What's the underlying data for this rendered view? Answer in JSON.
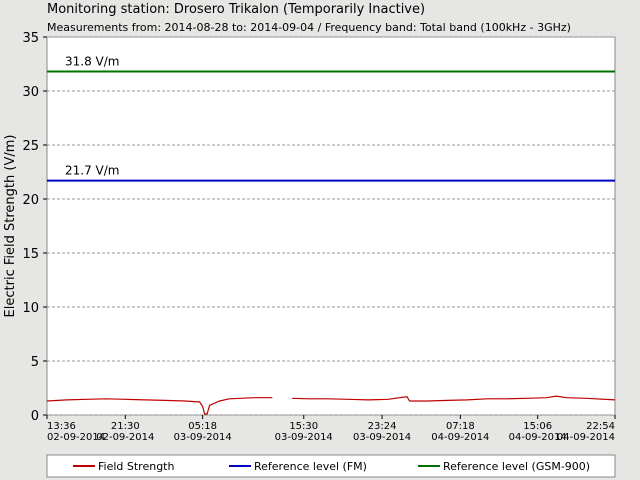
{
  "chart_data": {
    "type": "line",
    "title": "Monitoring station: Drosero Trikalon (Temporarily Inactive)",
    "subtitle": "Measurements from: 2014-08-28 to: 2014-09-04 / Frequency band: Total band (100kHz - 3GHz)",
    "y_label": "Electric Field Strength (V/m)",
    "ylim": [
      0,
      35
    ],
    "yticks": [
      0,
      5,
      10,
      15,
      20,
      25,
      30,
      35
    ],
    "grid": true,
    "xlim": [
      "2014-09-02 13:36",
      "2014-09-04 22:54"
    ],
    "xticks": [
      {
        "value": "2014-09-02 13:36",
        "label": "13:36 02-09-2014"
      },
      {
        "value": "2014-09-02 21:30",
        "label": "21:30 02-09-2014"
      },
      {
        "value": "2014-09-03 05:18",
        "label": "05:18 03-09-2014"
      },
      {
        "value": "2014-09-03 15:30",
        "label": "15:30 03-09-2014"
      },
      {
        "value": "2014-09-03 23:24",
        "label": "23:24 03-09-2014"
      },
      {
        "value": "2014-09-04 07:18",
        "label": "07:18 04-09-2014"
      },
      {
        "value": "2014-09-04 15:06",
        "label": "15:06 04-09-2014"
      },
      {
        "value": "2014-09-04 22:54",
        "label": "22:54 04-09-2014"
      }
    ],
    "x": [
      "2014-09-02 13:36",
      "2014-09-02 15:36",
      "2014-09-02 17:36",
      "2014-09-02 19:36",
      "2014-09-02 21:30",
      "2014-09-02 23:30",
      "2014-09-03 01:30",
      "2014-09-03 03:30",
      "2014-09-03 05:00",
      "2014-09-03 05:18",
      "2014-09-03 05:30",
      "2014-09-03 05:45",
      "2014-09-03 06:00",
      "2014-09-03 07:00",
      "2014-09-03 08:00",
      "2014-09-03 10:30",
      "2014-09-03 12:20",
      "2014-09-03 13:00",
      "2014-09-03 14:20",
      "2014-09-03 16:00",
      "2014-09-03 18:00",
      "2014-09-03 20:00",
      "2014-09-03 22:00",
      "2014-09-04 00:00",
      "2014-09-04 01:55",
      "2014-09-04 02:10",
      "2014-09-04 04:00",
      "2014-09-04 06:00",
      "2014-09-04 08:00",
      "2014-09-04 10:00",
      "2014-09-04 12:00",
      "2014-09-04 14:00",
      "2014-09-04 16:00",
      "2014-09-04 17:00",
      "2014-09-04 18:00",
      "2014-09-04 20:00",
      "2014-09-04 22:54"
    ],
    "series": [
      {
        "name": "Field Strength",
        "color": "#c00000",
        "values": [
          1.3,
          1.4,
          1.45,
          1.5,
          1.45,
          1.4,
          1.35,
          1.3,
          1.2,
          0.8,
          0.1,
          0.1,
          0.9,
          1.3,
          1.5,
          1.6,
          1.6,
          null,
          1.55,
          1.5,
          1.5,
          1.45,
          1.4,
          1.45,
          1.7,
          1.3,
          1.3,
          1.35,
          1.4,
          1.5,
          1.5,
          1.55,
          1.6,
          1.75,
          1.6,
          1.55,
          1.4
        ]
      }
    ],
    "reference_lines": [
      {
        "name": "Reference level (FM)",
        "value": 21.7,
        "label": "21.7 V/m",
        "color": "#0000c0"
      },
      {
        "name": "Reference level (GSM-900)",
        "value": 31.8,
        "label": "31.8 V/m",
        "color": "#007000"
      }
    ]
  }
}
